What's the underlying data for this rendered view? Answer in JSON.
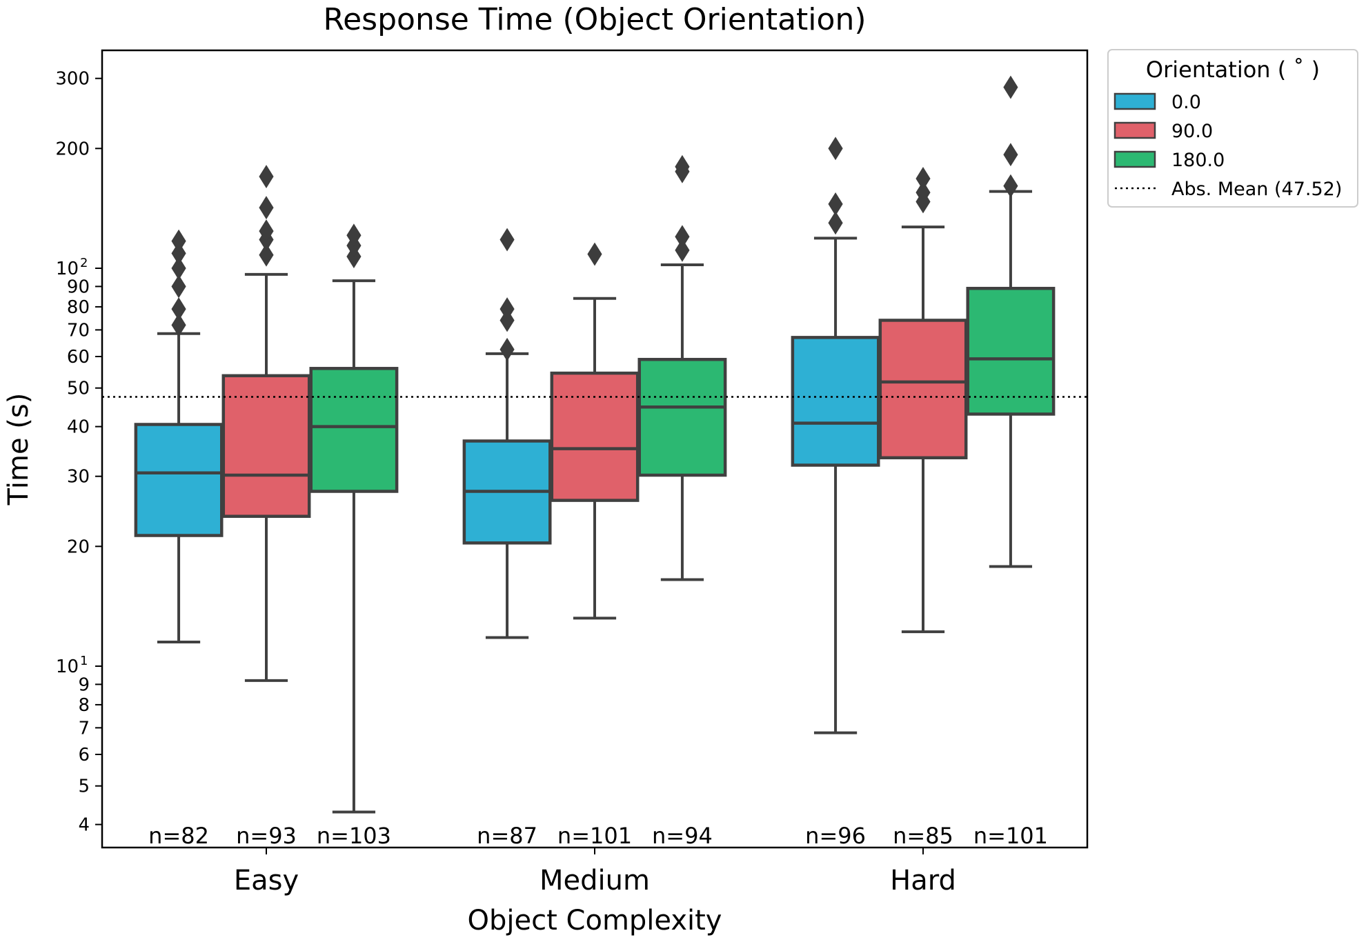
{
  "chart_data": {
    "type": "box",
    "title": "Response Time (Object Orientation)",
    "xlabel": "Object Complexity",
    "ylabel": "Time (s)",
    "yscale": "log",
    "ylim": [
      3.8,
      370
    ],
    "y_ticks": [
      {
        "value": 4,
        "label": "4"
      },
      {
        "value": 5,
        "label": "5"
      },
      {
        "value": 6,
        "label": "6"
      },
      {
        "value": 7,
        "label": "7"
      },
      {
        "value": 8,
        "label": "8"
      },
      {
        "value": 9,
        "label": "9"
      },
      {
        "value": 10,
        "label": "10",
        "exp": "1"
      },
      {
        "value": 20,
        "label": "20"
      },
      {
        "value": 30,
        "label": "30"
      },
      {
        "value": 40,
        "label": "40"
      },
      {
        "value": 50,
        "label": "50"
      },
      {
        "value": 60,
        "label": "60"
      },
      {
        "value": 70,
        "label": "70"
      },
      {
        "value": 80,
        "label": "80"
      },
      {
        "value": 90,
        "label": "90"
      },
      {
        "value": 100,
        "label": "10",
        "exp": "2"
      },
      {
        "value": 200,
        "label": "200"
      },
      {
        "value": 300,
        "label": "300"
      }
    ],
    "categories": [
      "Easy",
      "Medium",
      "Hard"
    ],
    "legend": {
      "title": "Orientation ( ˚ )",
      "placement": "outside-top-right",
      "mean_label": "Abs. Mean (47.52)"
    },
    "abs_mean": 47.52,
    "series": [
      {
        "name": "0.0",
        "color": "#2eb0d4",
        "boxes": [
          {
            "whislo": 11.5,
            "q1": 21.3,
            "med": 30.6,
            "q3": 40.5,
            "whishi": 68.5,
            "fliers": [
              72,
              79,
              90,
              100,
              109,
              117
            ],
            "n": "n=82"
          },
          {
            "whislo": 11.8,
            "q1": 20.4,
            "med": 27.5,
            "q3": 36.8,
            "whishi": 61,
            "fliers": [
              62.5,
              74,
              79,
              118
            ],
            "n": "n=87"
          },
          {
            "whislo": 6.8,
            "q1": 32,
            "med": 40.8,
            "q3": 67,
            "whishi": 119,
            "fliers": [
              130,
              145,
              200
            ],
            "n": "n=96"
          }
        ]
      },
      {
        "name": "90.0",
        "color": "#e0616a",
        "boxes": [
          {
            "whislo": 9.2,
            "q1": 23.8,
            "med": 30.2,
            "q3": 53.7,
            "whishi": 96.5,
            "fliers": [
              108,
              118,
              124,
              142,
              170
            ],
            "n": "n=93"
          },
          {
            "whislo": 13.2,
            "q1": 26.1,
            "med": 35.2,
            "q3": 54.5,
            "whishi": 84,
            "fliers": [
              108.5
            ],
            "n": "n=101"
          },
          {
            "whislo": 12.2,
            "q1": 33.4,
            "med": 51.8,
            "q3": 74,
            "whishi": 127,
            "fliers": [
              147,
              155,
              168
            ],
            "n": "n=85"
          }
        ]
      },
      {
        "name": "180.0",
        "color": "#2cb872",
        "boxes": [
          {
            "whislo": 4.3,
            "q1": 27.5,
            "med": 40,
            "q3": 56,
            "whishi": 93,
            "fliers": [
              107,
              114,
              121
            ],
            "n": "n=103"
          },
          {
            "whislo": 16.5,
            "q1": 30.2,
            "med": 44.8,
            "q3": 59,
            "whishi": 102,
            "fliers": [
              111,
              120,
              175,
              180
            ],
            "n": "n=94"
          },
          {
            "whislo": 17.8,
            "q1": 43,
            "med": 59.2,
            "q3": 89,
            "whishi": 156,
            "fliers": [
              161,
              193,
              285
            ],
            "n": "n=101"
          }
        ]
      }
    ]
  }
}
